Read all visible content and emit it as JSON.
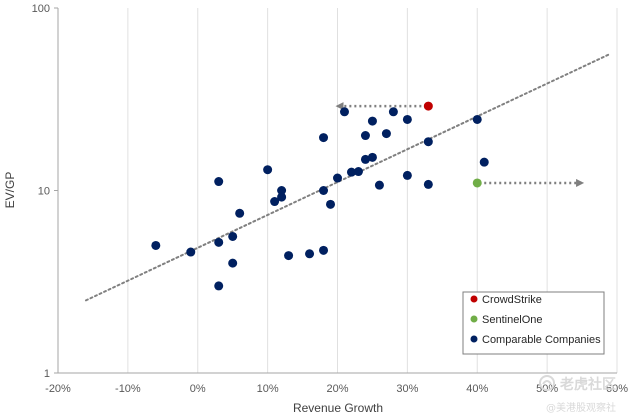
{
  "chart_data": {
    "type": "scatter",
    "xlabel": "Revenue Growth",
    "ylabel": "EV/GP",
    "x_scale": "linear",
    "y_scale": "log",
    "xlim": [
      -0.2,
      0.6
    ],
    "ylim": [
      1,
      100
    ],
    "x_ticks": [
      "-20%",
      "-10%",
      "0%",
      "10%",
      "20%",
      "30%",
      "40%",
      "50%",
      "60%"
    ],
    "x_tick_values": [
      -0.2,
      -0.1,
      0,
      0.1,
      0.2,
      0.3,
      0.4,
      0.5,
      0.6
    ],
    "y_ticks": [
      "1",
      "10",
      "100"
    ],
    "y_tick_values": [
      1,
      10,
      100
    ],
    "grid": "vertical",
    "legend_position": "bottom-right",
    "series": [
      {
        "name": "CrowdStrike",
        "color": "#c00000",
        "points": [
          [
            0.33,
            29
          ]
        ]
      },
      {
        "name": "SentinelOne",
        "color": "#70ad47",
        "points": [
          [
            0.4,
            11
          ]
        ]
      },
      {
        "name": "Comparable Companies",
        "color": "#002060",
        "points": [
          [
            -0.06,
            5.0
          ],
          [
            -0.01,
            4.6
          ],
          [
            0.03,
            11.2
          ],
          [
            0.03,
            5.2
          ],
          [
            0.03,
            3.0
          ],
          [
            0.05,
            5.6
          ],
          [
            0.05,
            4.0
          ],
          [
            0.06,
            7.5
          ],
          [
            0.1,
            13.0
          ],
          [
            0.11,
            8.7
          ],
          [
            0.12,
            10.0
          ],
          [
            0.12,
            9.2
          ],
          [
            0.13,
            4.4
          ],
          [
            0.16,
            4.5
          ],
          [
            0.18,
            19.5
          ],
          [
            0.18,
            10.0
          ],
          [
            0.18,
            4.7
          ],
          [
            0.19,
            8.4
          ],
          [
            0.2,
            11.7
          ],
          [
            0.21,
            27.0
          ],
          [
            0.22,
            12.6
          ],
          [
            0.23,
            12.7
          ],
          [
            0.24,
            20.0
          ],
          [
            0.24,
            14.8
          ],
          [
            0.25,
            24.0
          ],
          [
            0.25,
            15.2
          ],
          [
            0.26,
            10.7
          ],
          [
            0.27,
            20.5
          ],
          [
            0.28,
            27.0
          ],
          [
            0.3,
            24.5
          ],
          [
            0.3,
            12.1
          ],
          [
            0.33,
            18.5
          ],
          [
            0.33,
            10.8
          ],
          [
            0.4,
            24.5
          ],
          [
            0.41,
            14.3
          ]
        ]
      }
    ],
    "trendline": {
      "style": "dotted",
      "color": "#808080",
      "from": [
        -0.16,
        2.5
      ],
      "to": [
        0.59,
        56
      ]
    },
    "annotations": [
      {
        "type": "arrow",
        "from": [
          0.32,
          29
        ],
        "to": [
          0.2,
          29
        ],
        "color": "#7f7f7f",
        "style": "dotted"
      },
      {
        "type": "arrow",
        "from": [
          0.41,
          11
        ],
        "to": [
          0.55,
          11
        ],
        "color": "#7f7f7f",
        "style": "dotted"
      }
    ]
  },
  "watermark": {
    "logo_text": "老虎社区",
    "handle": "@美港股观察社"
  }
}
